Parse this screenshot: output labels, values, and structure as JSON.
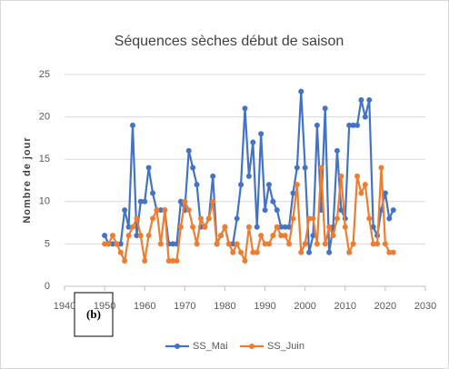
{
  "chart_data": {
    "type": "line",
    "title": "Séquences sèches début de saison",
    "y_label": "Nombre de jour",
    "annotation": "(b)",
    "x": [
      1950,
      1951,
      1952,
      1953,
      1954,
      1955,
      1956,
      1957,
      1958,
      1959,
      1960,
      1961,
      1962,
      1963,
      1964,
      1965,
      1966,
      1967,
      1968,
      1969,
      1970,
      1971,
      1972,
      1973,
      1974,
      1975,
      1976,
      1977,
      1978,
      1979,
      1980,
      1981,
      1982,
      1983,
      1984,
      1985,
      1986,
      1987,
      1988,
      1989,
      1990,
      1991,
      1992,
      1993,
      1994,
      1995,
      1996,
      1997,
      1998,
      1999,
      2000,
      2001,
      2002,
      2003,
      2004,
      2005,
      2006,
      2007,
      2008,
      2009,
      2010,
      2011,
      2012,
      2013,
      2014,
      2015,
      2016,
      2017,
      2018,
      2019,
      2020,
      2021,
      2022
    ],
    "series": [
      {
        "name": "SS_Mai",
        "color": "#4472c4",
        "values": [
          6,
          5,
          5,
          5,
          5,
          9,
          7,
          19,
          6,
          10,
          10,
          14,
          11,
          9,
          9,
          9,
          5,
          5,
          5,
          10,
          9,
          16,
          14,
          12,
          7,
          7,
          8,
          13,
          5,
          6,
          7,
          5,
          5,
          8,
          12,
          21,
          13,
          17,
          7,
          18,
          9,
          12,
          10,
          9,
          7,
          7,
          7,
          11,
          14,
          23,
          14,
          4,
          6,
          19,
          9,
          21,
          4,
          7,
          16,
          9,
          8,
          19,
          19,
          19,
          22,
          20,
          22,
          7,
          6,
          9,
          11,
          8,
          9
        ]
      },
      {
        "name": "SS_Juin",
        "color": "#ed7d31",
        "values": [
          5,
          5,
          6,
          5,
          4,
          3,
          6,
          7,
          8,
          6,
          3,
          6,
          8,
          9,
          5,
          9,
          3,
          3,
          3,
          7,
          10,
          9,
          7,
          5,
          8,
          7,
          8,
          10,
          5,
          6,
          7,
          5,
          4,
          5,
          4,
          3,
          7,
          4,
          4,
          6,
          5,
          5,
          6,
          7,
          6,
          6,
          5,
          8,
          12,
          4,
          5,
          8,
          8,
          5,
          14,
          5,
          7,
          6,
          8,
          13,
          7,
          4,
          5,
          13,
          11,
          12,
          8,
          5,
          5,
          14,
          5,
          4,
          4
        ]
      }
    ],
    "xlim": [
      1940,
      2030
    ],
    "xticks": [
      1940,
      1950,
      1960,
      1970,
      1980,
      1990,
      2000,
      2010,
      2020,
      2030
    ],
    "ylim": [
      0,
      25
    ],
    "yticks": [
      0,
      5,
      10,
      15,
      20,
      25
    ],
    "grid": true,
    "legend": "bottom"
  }
}
